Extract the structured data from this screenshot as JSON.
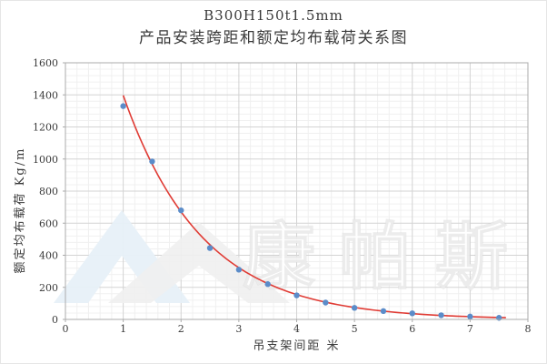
{
  "title": {
    "line1": "B300H150t1.5mm",
    "line2": "产品安装跨距和额定均布载荷关系图"
  },
  "axes": {
    "x": {
      "title": "吊支架间距  米"
    },
    "y": {
      "title": "额定均布载荷  Kg/m"
    }
  },
  "watermark": {
    "text": "康帕斯",
    "logo": "mountain-chevrons-logo",
    "logo_blue": "#e7f0f8",
    "logo_gray": "#f0f0f0"
  },
  "colors": {
    "curve": "#e03b34",
    "points": "#5b8cc9",
    "grid_major": "#d3d3d3",
    "grid_minor": "#f0f0f0",
    "axis": "#ababab",
    "text": "#3a3a3a"
  },
  "chart_data": {
    "type": "scatter",
    "title": "B300H150t1.5mm 产品安装跨距和额定均布载荷关系图",
    "xlabel": "吊支架间距 米",
    "ylabel": "额定均布载荷 Kg/m",
    "x": [
      1,
      1.5,
      2,
      2.5,
      3,
      3.5,
      4,
      4.5,
      5,
      5.5,
      6,
      6.5,
      7,
      7.5
    ],
    "values": [
      1330,
      985,
      680,
      445,
      310,
      220,
      150,
      105,
      72,
      52,
      38,
      26,
      18,
      10
    ],
    "xlim": [
      0,
      8
    ],
    "ylim": [
      0,
      1600
    ],
    "xticks": [
      0,
      1,
      2,
      3,
      4,
      5,
      6,
      7,
      8
    ],
    "yticks": [
      0,
      200,
      400,
      600,
      800,
      1000,
      1200,
      1400,
      1600
    ],
    "x_minor_step": 0.2,
    "y_minor_step": 40,
    "grid": true,
    "legend": false,
    "trendline": {
      "type": "exponential",
      "a": 2907,
      "b": -0.733,
      "x_start": 1.0,
      "x_end": 7.62,
      "color": "#e03b34"
    }
  }
}
